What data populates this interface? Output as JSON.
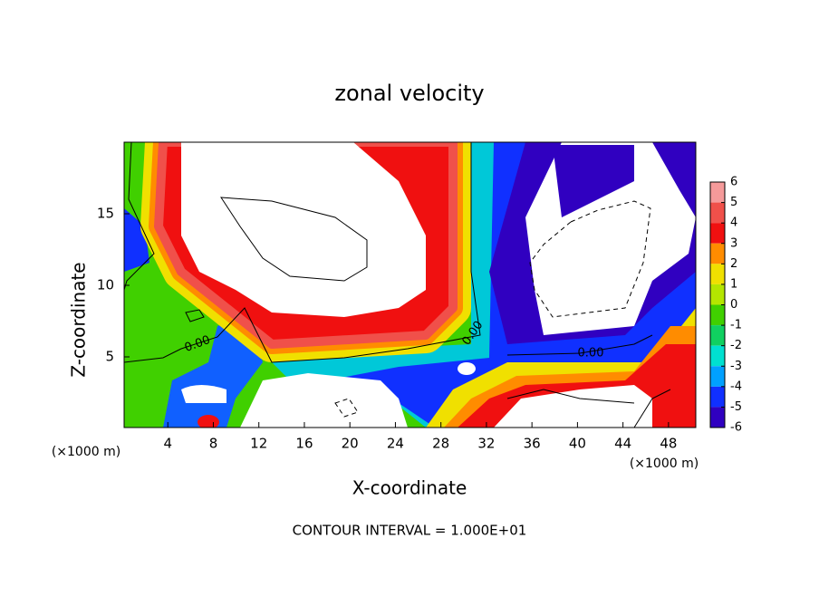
{
  "chart_data": {
    "type": "contour",
    "title": "zonal velocity",
    "x_label": "X-coordinate",
    "y_label": "Z-coordinate",
    "x_unit_left": "(×1000 m)",
    "x_unit_right": "(×1000 m)",
    "xlim": [
      0,
      50
    ],
    "xticks": [
      4,
      8,
      12,
      16,
      20,
      24,
      28,
      32,
      36,
      40,
      44,
      48
    ],
    "ylim": [
      0,
      20
    ],
    "yticks": [
      5,
      10,
      15
    ],
    "colorbar": {
      "ticks": [
        6,
        5,
        4,
        3,
        2,
        1,
        0,
        -1,
        -2,
        -3,
        -4,
        -5,
        -6
      ],
      "colors": [
        "#f59a9a",
        "#f0504a",
        "#f01010",
        "#ff8c00",
        "#f0e000",
        "#b4e600",
        "#40d000",
        "#10d060",
        "#00e0d0",
        "#00a0ff",
        "#1030ff",
        "#3000c0"
      ]
    },
    "contour_labels": [
      {
        "value": 0,
        "label": "0.00"
      },
      {
        "value": 0,
        "label": "0.00"
      },
      {
        "value": 0,
        "label": "0.00"
      }
    ],
    "footer": "CONTOUR INTERVAL = 1.000E+01"
  }
}
